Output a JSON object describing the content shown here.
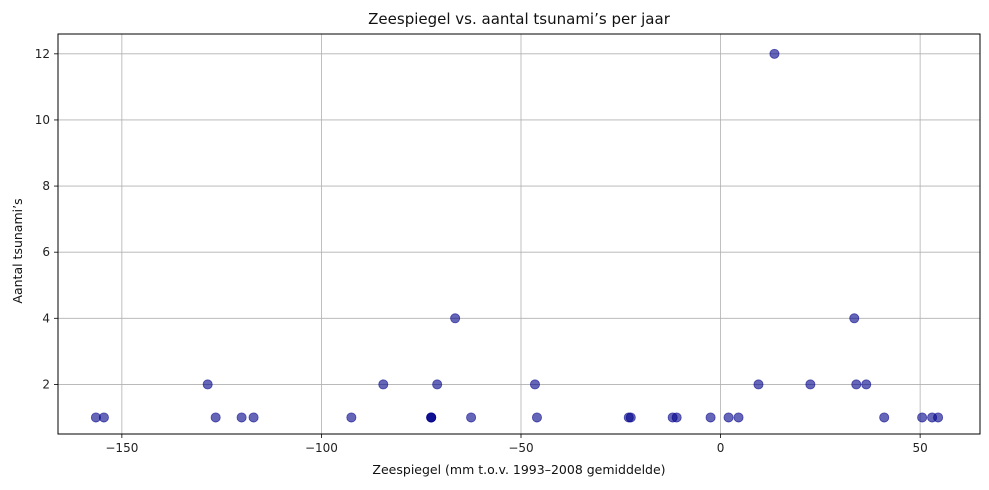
{
  "chart_data": {
    "type": "scatter",
    "title": "Zeespiegel vs. aantal tsunami’s per jaar",
    "xlabel": "Zeespiegel (mm t.o.v. 1993–2008 gemiddelde)",
    "ylabel": "Aantal tsunami’s",
    "xlim": [
      -166,
      65
    ],
    "ylim": [
      0.5,
      12.6
    ],
    "xticks": [
      -150,
      -100,
      -50,
      0,
      50
    ],
    "xtick_labels": [
      "−150",
      "−100",
      "−50",
      "0",
      "50"
    ],
    "yticks": [
      2,
      4,
      6,
      8,
      10,
      12
    ],
    "ytick_labels": [
      "2",
      "4",
      "6",
      "8",
      "10",
      "12"
    ],
    "grid": true,
    "marker_color": "#00008b",
    "marker_opacity": 0.6,
    "points": [
      {
        "x": -156.5,
        "y": 1
      },
      {
        "x": -154.5,
        "y": 1
      },
      {
        "x": -128.5,
        "y": 2
      },
      {
        "x": -126.5,
        "y": 1
      },
      {
        "x": -120,
        "y": 1
      },
      {
        "x": -117,
        "y": 1
      },
      {
        "x": -92.5,
        "y": 1
      },
      {
        "x": -84.5,
        "y": 2
      },
      {
        "x": -72.5,
        "y": 1
      },
      {
        "x": -72.5,
        "y": 1
      },
      {
        "x": -72.5,
        "y": 1
      },
      {
        "x": -71,
        "y": 2
      },
      {
        "x": -66.5,
        "y": 4
      },
      {
        "x": -62.5,
        "y": 1
      },
      {
        "x": -46.5,
        "y": 2
      },
      {
        "x": -46,
        "y": 1
      },
      {
        "x": -23,
        "y": 1
      },
      {
        "x": -22.5,
        "y": 1
      },
      {
        "x": -12,
        "y": 1
      },
      {
        "x": -11,
        "y": 1
      },
      {
        "x": -2.5,
        "y": 1
      },
      {
        "x": 2,
        "y": 1
      },
      {
        "x": 4.5,
        "y": 1
      },
      {
        "x": 9.5,
        "y": 2
      },
      {
        "x": 13.5,
        "y": 12
      },
      {
        "x": 22.5,
        "y": 2
      },
      {
        "x": 33.5,
        "y": 4
      },
      {
        "x": 34,
        "y": 2
      },
      {
        "x": 36.5,
        "y": 2
      },
      {
        "x": 41,
        "y": 1
      },
      {
        "x": 50.5,
        "y": 1
      },
      {
        "x": 53,
        "y": 1
      },
      {
        "x": 54.5,
        "y": 1
      }
    ]
  }
}
